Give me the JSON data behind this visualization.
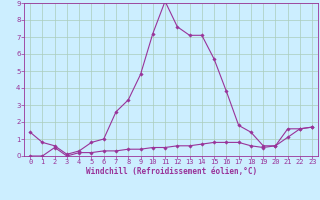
{
  "xlabel": "Windchill (Refroidissement éolien,°C)",
  "bg_color": "#cceeff",
  "grid_color": "#aaccbb",
  "line_color": "#993399",
  "curve1_x": [
    0,
    1,
    2,
    3,
    4,
    5,
    6,
    7,
    8,
    9,
    10,
    11,
    12,
    13,
    14,
    15,
    16,
    17,
    18,
    19,
    20,
    21,
    22,
    23
  ],
  "curve1_y": [
    1.4,
    0.8,
    0.6,
    0.1,
    0.3,
    0.8,
    1.0,
    2.6,
    3.3,
    4.8,
    7.2,
    9.1,
    7.6,
    7.1,
    7.1,
    5.7,
    3.8,
    1.8,
    1.4,
    0.6,
    0.6,
    1.6,
    1.6,
    1.7
  ],
  "curve2_x": [
    0,
    1,
    2,
    3,
    4,
    5,
    6,
    7,
    8,
    9,
    10,
    11,
    12,
    13,
    14,
    15,
    16,
    17,
    18,
    19,
    20,
    21,
    22,
    23
  ],
  "curve2_y": [
    0.0,
    0.0,
    0.5,
    0.0,
    0.2,
    0.2,
    0.3,
    0.3,
    0.4,
    0.4,
    0.5,
    0.5,
    0.6,
    0.6,
    0.7,
    0.8,
    0.8,
    0.8,
    0.6,
    0.5,
    0.6,
    1.1,
    1.6,
    1.7
  ],
  "xlim": [
    -0.5,
    23.5
  ],
  "ylim": [
    0,
    9
  ],
  "xticks": [
    0,
    1,
    2,
    3,
    4,
    5,
    6,
    7,
    8,
    9,
    10,
    11,
    12,
    13,
    14,
    15,
    16,
    17,
    18,
    19,
    20,
    21,
    22,
    23
  ],
  "yticks": [
    0,
    1,
    2,
    3,
    4,
    5,
    6,
    7,
    8,
    9
  ],
  "tick_fontsize": 5.0,
  "xlabel_fontsize": 5.5,
  "marker_size": 1.8,
  "line_width": 0.8
}
